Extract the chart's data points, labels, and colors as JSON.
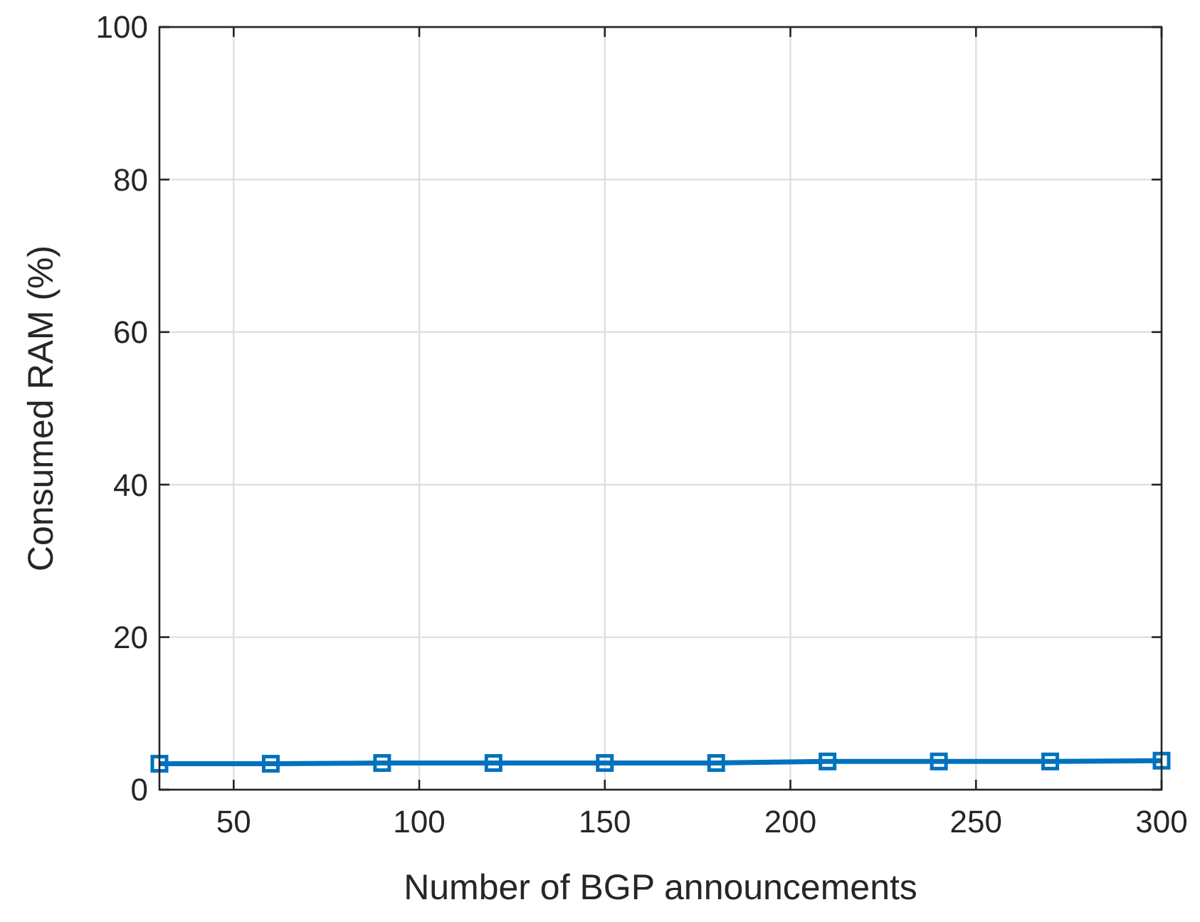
{
  "chart_data": {
    "type": "line",
    "xlabel": "Number of BGP announcements",
    "ylabel": "Consumed RAM (%)",
    "x": [
      30,
      60,
      90,
      120,
      150,
      180,
      210,
      240,
      270,
      300
    ],
    "series": [
      {
        "color": "#0072bd",
        "values": [
          3.4,
          3.4,
          3.5,
          3.5,
          3.5,
          3.5,
          3.7,
          3.7,
          3.7,
          3.8
        ]
      }
    ],
    "xlim": [
      30,
      300
    ],
    "xticks": [
      50,
      100,
      150,
      200,
      250,
      300
    ],
    "ylim": [
      0,
      100
    ],
    "yticks": [
      0,
      20,
      40,
      60,
      80,
      100
    ],
    "grid": true,
    "marker": "square",
    "line_style": "solid"
  }
}
